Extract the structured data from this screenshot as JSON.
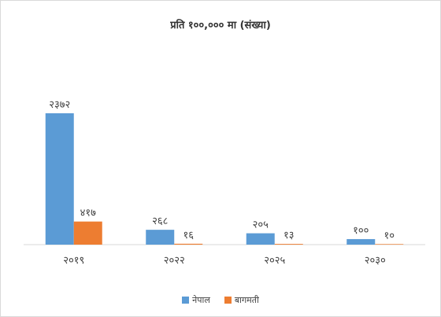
{
  "chart_data": {
    "type": "bar",
    "title": "प्रति १००,००० मा (संख्या)",
    "categories": [
      "२०१९",
      "२०२२",
      "२०२५",
      "२०३०"
    ],
    "series": [
      {
        "name": "नेपाल",
        "color": "#5b9bd5",
        "values": [
          2372,
          268,
          205,
          100
        ],
        "labels": [
          "२३७२",
          "२६८",
          "२०५",
          "१००"
        ]
      },
      {
        "name": "बागमती",
        "color": "#ed7d31",
        "values": [
          417,
          16,
          13,
          10
        ],
        "labels": [
          "४१७",
          "१६",
          "१३",
          "१०"
        ]
      }
    ],
    "ylim": [
      0,
      2900
    ],
    "grid": false,
    "legend_position": "bottom"
  }
}
